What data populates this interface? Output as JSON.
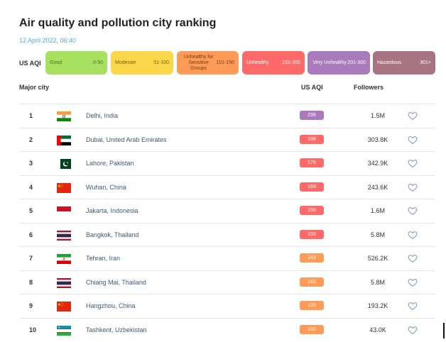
{
  "title": "Air quality and pollution city ranking",
  "date": "12 April 2022, 06:40",
  "aqi_label": "US AQI",
  "legend": {
    "good": {
      "name": "Good",
      "range": "0-50",
      "color": "#a8e05f"
    },
    "moderate": {
      "name": "Moderate",
      "range": "51-100",
      "color": "#fdd74b"
    },
    "usg": {
      "name": "Unhealthy for Sensitive Groups",
      "range": "101-150",
      "color": "#fe9b57"
    },
    "unhealthy": {
      "name": "Unhealthy",
      "range": "151-200",
      "color": "#fe6a69"
    },
    "very": {
      "name": "Very Unhealthy",
      "range": "201-300",
      "color": "#a97abc"
    },
    "hazard": {
      "name": "Hazardous",
      "range": "301+",
      "color": "#a87383"
    }
  },
  "columns": {
    "city": "Major city",
    "aqi": "US AQI",
    "followers": "Followers"
  },
  "rows": [
    {
      "rank": "1",
      "city": "Delhi, India",
      "aqi": "236",
      "followers": "1.5M",
      "flag": "india-flag"
    },
    {
      "rank": "2",
      "city": "Dubai, United Arab Emirates",
      "aqi": "198",
      "followers": "303.8K",
      "flag": "uae-flag"
    },
    {
      "rank": "3",
      "city": "Lahore, Pakistan",
      "aqi": "176",
      "followers": "342.9K",
      "flag": "pakistan-flag"
    },
    {
      "rank": "4",
      "city": "Wuhan, China",
      "aqi": "169",
      "followers": "243.6K",
      "flag": "china-flag"
    },
    {
      "rank": "5",
      "city": "Jakarta, Indonesia",
      "aqi": "156",
      "followers": "1.6M",
      "flag": "indonesia-flag"
    },
    {
      "rank": "6",
      "city": "Bangkok, Thailand",
      "aqi": "155",
      "followers": "5.8M",
      "flag": "thailand-flag"
    },
    {
      "rank": "7",
      "city": "Tehran, Iran",
      "aqi": "143",
      "followers": "526.2K",
      "flag": "iran-flag"
    },
    {
      "rank": "8",
      "city": "Chiang Mai, Thailand",
      "aqi": "142",
      "followers": "5.8M",
      "flag": "thailand-flag"
    },
    {
      "rank": "9",
      "city": "Hangzhou, China",
      "aqi": "135",
      "followers": "193.2K",
      "flag": "china-flag"
    },
    {
      "rank": "10",
      "city": "Tashkent, Uzbekistan",
      "aqi": "132",
      "followers": "43.0K",
      "flag": "uzbekistan-flag"
    }
  ]
}
